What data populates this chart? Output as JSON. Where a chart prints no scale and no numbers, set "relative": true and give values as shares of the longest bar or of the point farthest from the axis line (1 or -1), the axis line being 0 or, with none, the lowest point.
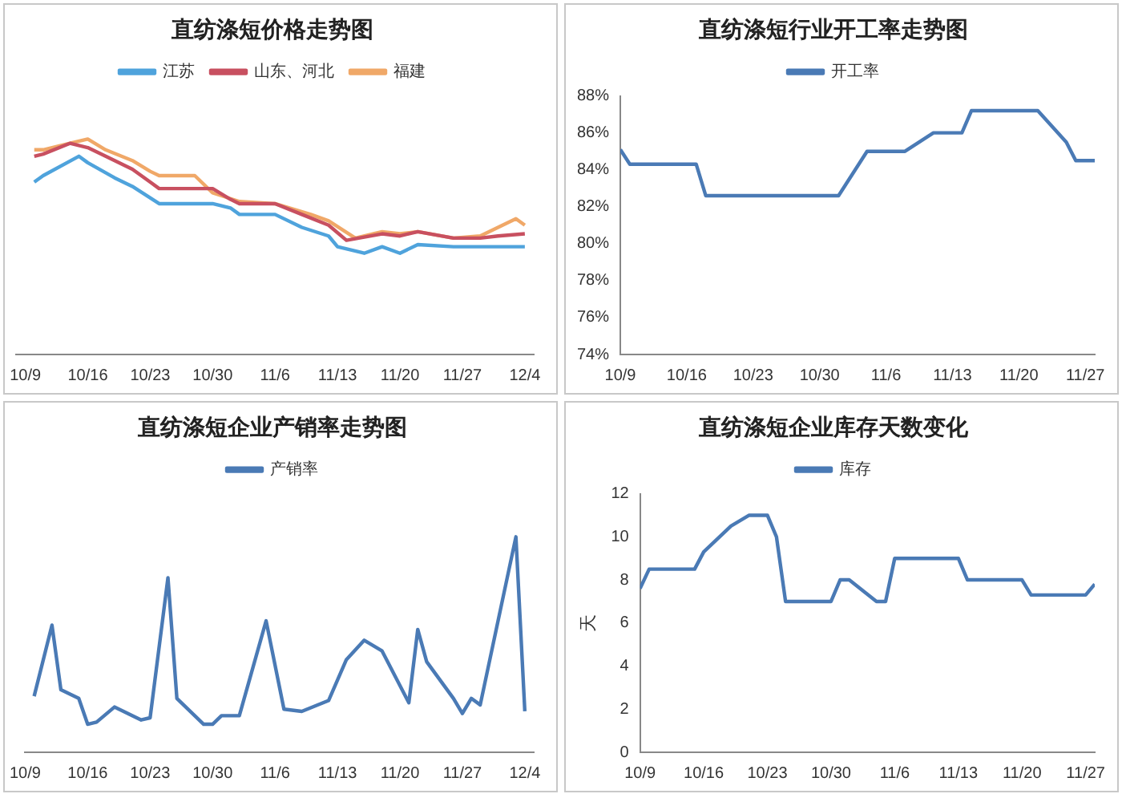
{
  "chart_data": [
    {
      "type": "line",
      "title": "直纺涤短价格走势图",
      "relative": true,
      "legend": "top",
      "marker": "none",
      "xlim": [
        "--10-08",
        "--12-05"
      ],
      "xticks": [
        {
          "value": "--10-09",
          "label": "10/9"
        },
        {
          "value": "--10-16",
          "label": "10/16"
        },
        {
          "value": "--10-23",
          "label": "10/23"
        },
        {
          "value": "--10-30",
          "label": "10/30"
        },
        {
          "value": "--11-06",
          "label": "11/6"
        },
        {
          "value": "--11-13",
          "label": "11/13"
        },
        {
          "value": "--11-20",
          "label": "11/20"
        },
        {
          "value": "--11-27",
          "label": "11/27"
        },
        {
          "value": "--12-04",
          "label": "12/4"
        }
      ],
      "series": [
        {
          "name": "江苏",
          "color": "#4fa3dc",
          "x": [
            "--10-10",
            "--10-11",
            "--10-15",
            "--10-16",
            "--10-19",
            "--10-21",
            "--10-24",
            "--10-30",
            "--11-01",
            "--11-02",
            "--11-06",
            "--11-09",
            "--11-12",
            "--11-13",
            "--11-16",
            "--11-18",
            "--11-20",
            "--11-22",
            "--11-26",
            "--12-04"
          ],
          "values": [
            0.8,
            0.83,
            0.92,
            0.89,
            0.82,
            0.78,
            0.7,
            0.7,
            0.68,
            0.65,
            0.65,
            0.59,
            0.55,
            0.5,
            0.47,
            0.5,
            0.47,
            0.51,
            0.5,
            0.5
          ]
        },
        {
          "name": "山东、河北",
          "color": "#c85060",
          "x": [
            "--10-10",
            "--10-11",
            "--10-14",
            "--10-16",
            "--10-18",
            "--10-21",
            "--10-23",
            "--10-24",
            "--10-30",
            "--11-01",
            "--11-02",
            "--11-06",
            "--11-09",
            "--11-12",
            "--11-14",
            "--11-18",
            "--11-20",
            "--11-22",
            "--11-26",
            "--11-29",
            "--12-01",
            "--12-04"
          ],
          "values": [
            0.92,
            0.93,
            0.98,
            0.96,
            0.92,
            0.86,
            0.8,
            0.77,
            0.77,
            0.72,
            0.7,
            0.7,
            0.65,
            0.6,
            0.53,
            0.56,
            0.55,
            0.57,
            0.54,
            0.54,
            0.55,
            0.56
          ]
        },
        {
          "name": "福建",
          "color": "#f0a868",
          "x": [
            "--10-10",
            "--10-11",
            "--10-14",
            "--10-16",
            "--10-18",
            "--10-21",
            "--10-23",
            "--10-24",
            "--10-28",
            "--10-30",
            "--11-02",
            "--11-06",
            "--11-10",
            "--11-12",
            "--11-15",
            "--11-18",
            "--11-20",
            "--11-22",
            "--11-26",
            "--11-29",
            "--12-03",
            "--12-04"
          ],
          "values": [
            0.95,
            0.95,
            0.98,
            1,
            0.95,
            0.9,
            0.85,
            0.83,
            0.83,
            0.75,
            0.71,
            0.7,
            0.65,
            0.62,
            0.54,
            0.57,
            0.56,
            0.57,
            0.54,
            0.55,
            0.63,
            0.6
          ]
        }
      ]
    },
    {
      "type": "line",
      "title": "直纺涤短行业开工率走势图",
      "legend": "top",
      "marker": "none",
      "xlim": [
        "--10-09",
        "--11-28"
      ],
      "xticks": [
        {
          "value": "--10-09",
          "label": "10/9"
        },
        {
          "value": "--10-16",
          "label": "10/16"
        },
        {
          "value": "--10-23",
          "label": "10/23"
        },
        {
          "value": "--10-30",
          "label": "10/30"
        },
        {
          "value": "--11-06",
          "label": "11/6"
        },
        {
          "value": "--11-13",
          "label": "11/13"
        },
        {
          "value": "--11-20",
          "label": "11/20"
        },
        {
          "value": "--11-27",
          "label": "11/27"
        }
      ],
      "ylim": [
        74,
        88
      ],
      "yticks": [
        {
          "value": 74,
          "label": "74%"
        },
        {
          "value": 76,
          "label": "76%"
        },
        {
          "value": 78,
          "label": "78%"
        },
        {
          "value": 80,
          "label": "80%"
        },
        {
          "value": 82,
          "label": "82%"
        },
        {
          "value": 84,
          "label": "84%"
        },
        {
          "value": 86,
          "label": "86%"
        },
        {
          "value": 88,
          "label": "88%"
        }
      ],
      "series": [
        {
          "name": "开工率",
          "color": "#4a7ab5",
          "x": [
            "--10-09",
            "--10-10",
            "--10-17",
            "--10-18",
            "--11-01",
            "--11-04",
            "--11-08",
            "--11-11",
            "--11-14",
            "--11-15",
            "--11-22",
            "--11-25",
            "--11-26",
            "--11-28"
          ],
          "values": [
            85.1,
            84.3,
            84.3,
            82.6,
            82.6,
            85,
            85,
            86,
            86,
            87.2,
            87.2,
            85.5,
            84.5,
            84.5
          ]
        }
      ]
    },
    {
      "type": "line",
      "title": "直纺涤短企业产销率走势图",
      "relative": true,
      "legend": "top",
      "marker": "none",
      "xlim": [
        "--10-09",
        "--12-05"
      ],
      "xticks": [
        {
          "value": "--10-09",
          "label": "10/9"
        },
        {
          "value": "--10-16",
          "label": "10/16"
        },
        {
          "value": "--10-23",
          "label": "10/23"
        },
        {
          "value": "--10-30",
          "label": "10/30"
        },
        {
          "value": "--11-06",
          "label": "11/6"
        },
        {
          "value": "--11-13",
          "label": "11/13"
        },
        {
          "value": "--11-20",
          "label": "11/20"
        },
        {
          "value": "--11-27",
          "label": "11/27"
        },
        {
          "value": "--12-04",
          "label": "12/4"
        }
      ],
      "series": [
        {
          "name": "产销率",
          "color": "#4a7ab5",
          "x": [
            "--10-10",
            "--10-12",
            "--10-13",
            "--10-15",
            "--10-16",
            "--10-17",
            "--10-19",
            "--10-22",
            "--10-23",
            "--10-25",
            "--10-26",
            "--10-29",
            "--10-30",
            "--10-31",
            "--11-02",
            "--11-05",
            "--11-07",
            "--11-09",
            "--11-12",
            "--11-14",
            "--11-16",
            "--11-18",
            "--11-21",
            "--11-22",
            "--11-23",
            "--11-26",
            "--11-27",
            "--11-28",
            "--11-29",
            "--12-03",
            "--12-04"
          ],
          "values": [
            0.26,
            0.59,
            0.29,
            0.25,
            0.13,
            0.14,
            0.21,
            0.15,
            0.16,
            0.81,
            0.25,
            0.13,
            0.13,
            0.17,
            0.17,
            0.61,
            0.2,
            0.19,
            0.24,
            0.43,
            0.52,
            0.47,
            0.23,
            0.57,
            0.42,
            0.25,
            0.18,
            0.25,
            0.22,
            1,
            0.19
          ]
        }
      ]
    },
    {
      "type": "line",
      "title": "直纺涤短企业库存天数变化",
      "ylabel": "天",
      "legend": "top",
      "marker": "none",
      "xlim": [
        "--10-09",
        "--11-28"
      ],
      "xticks": [
        {
          "value": "--10-09",
          "label": "10/9"
        },
        {
          "value": "--10-16",
          "label": "10/16"
        },
        {
          "value": "--10-23",
          "label": "10/23"
        },
        {
          "value": "--10-30",
          "label": "10/30"
        },
        {
          "value": "--11-06",
          "label": "11/6"
        },
        {
          "value": "--11-13",
          "label": "11/13"
        },
        {
          "value": "--11-20",
          "label": "11/20"
        },
        {
          "value": "--11-27",
          "label": "11/27"
        }
      ],
      "ylim": [
        0,
        12
      ],
      "yticks": [
        0,
        2,
        4,
        6,
        8,
        10,
        12
      ],
      "series": [
        {
          "name": "库存",
          "color": "#4a7ab5",
          "x": [
            "--10-09",
            "--10-10",
            "--10-15",
            "--10-16",
            "--10-19",
            "--10-21",
            "--10-23",
            "--10-24",
            "--10-25",
            "--10-30",
            "--10-31",
            "--11-01",
            "--11-04",
            "--11-05",
            "--11-06",
            "--11-13",
            "--11-14",
            "--11-20",
            "--11-21",
            "--11-27",
            "--11-28"
          ],
          "values": [
            7.6,
            8.5,
            8.5,
            9.3,
            10.5,
            11,
            11,
            10,
            7,
            7,
            8,
            8,
            7,
            7,
            9,
            9,
            8,
            8,
            7.3,
            7.3,
            7.8
          ]
        }
      ]
    }
  ]
}
